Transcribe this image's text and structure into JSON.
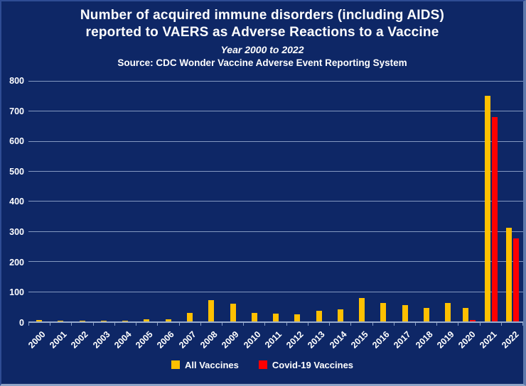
{
  "header": {
    "title_line1": "Number of acquired immune disorders (including AIDS)",
    "title_line2": "reported to VAERS as Adverse Reactions to a Vaccine",
    "subtitle": "Year 2000 to 2022",
    "source": "Source: CDC Wonder Vaccine Adverse Event Reporting System"
  },
  "colors": {
    "background": "#0e2766",
    "gridline": "#8b9fc6",
    "text": "#ffffff",
    "all_vaccines": "#ffc000",
    "covid_vaccines": "#fe0000"
  },
  "legend": {
    "items": [
      {
        "label": "All Vaccines",
        "color": "#ffc000"
      },
      {
        "label": "Covid-19 Vaccines",
        "color": "#fe0000"
      }
    ]
  },
  "chart_data": {
    "type": "bar",
    "title": "Number of acquired immune disorders (including AIDS) reported to VAERS as Adverse Reactions to a Vaccine",
    "subtitle": "Year 2000 to 2022",
    "source": "Source: CDC Wonder Vaccine Adverse Event Reporting System",
    "categories": [
      "2000",
      "2001",
      "2002",
      "2003",
      "2004",
      "2005",
      "2006",
      "2007",
      "2008",
      "2009",
      "2010",
      "2011",
      "2012",
      "2013",
      "2014",
      "2015",
      "2016",
      "2017",
      "2018",
      "2019",
      "2020",
      "2021",
      "2022"
    ],
    "series": [
      {
        "name": "All Vaccines",
        "color": "#ffc000",
        "values": [
          5,
          1,
          3,
          3,
          3,
          6,
          8,
          28,
          70,
          58,
          28,
          25,
          23,
          36,
          39,
          78,
          60,
          55,
          45,
          62,
          45,
          745,
          310
        ]
      },
      {
        "name": "Covid-19 Vaccines",
        "color": "#fe0000",
        "values": [
          0,
          0,
          0,
          0,
          0,
          0,
          0,
          0,
          0,
          0,
          0,
          0,
          0,
          0,
          0,
          0,
          0,
          0,
          0,
          0,
          5,
          675,
          275
        ]
      }
    ],
    "xlabel": "",
    "ylabel": "",
    "ylim": [
      0,
      800
    ],
    "yticks": [
      0,
      100,
      200,
      300,
      400,
      500,
      600,
      700,
      800
    ],
    "grid": true,
    "legend_position": "bottom"
  }
}
